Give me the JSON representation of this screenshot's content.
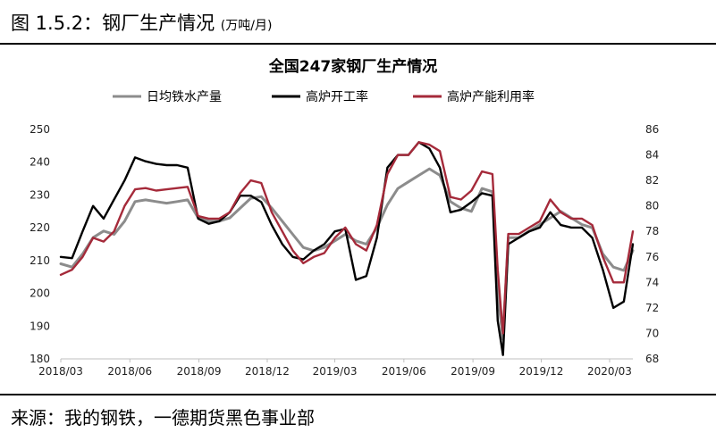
{
  "figure": {
    "label": "图 1.5.2：钢厂生产情况",
    "unit": "(万吨/月)",
    "source": "来源：我的钢铁，一德期货黑色事业部"
  },
  "chart_data": {
    "type": "line",
    "title": "全国247家钢厂生产情况",
    "legend_position": "top",
    "grid": false,
    "x_ticks": [
      "2018/03",
      "2018/06",
      "2018/09",
      "2018/12",
      "2019/03",
      "2019/06",
      "2019/09",
      "2019/12",
      "2020/03"
    ],
    "x_range": [
      "2018-03-01",
      "2020-04-01"
    ],
    "y_left": {
      "range": [
        180,
        250
      ],
      "ticks": [
        "180",
        "190",
        "200",
        "210",
        "220",
        "230",
        "240",
        "250"
      ]
    },
    "y_right": {
      "range": [
        68,
        86
      ],
      "ticks": [
        "68",
        "70",
        "72",
        "74",
        "76",
        "78",
        "80",
        "82",
        "84",
        "86"
      ]
    },
    "series": [
      {
        "name": "日均铁水产量",
        "axis": "left",
        "color": "#8c8c8c",
        "points": [
          [
            "2018-03-01",
            209
          ],
          [
            "2018-03-16",
            208
          ],
          [
            "2018-03-30",
            212
          ],
          [
            "2018-04-13",
            217
          ],
          [
            "2018-04-27",
            219
          ],
          [
            "2018-05-11",
            218
          ],
          [
            "2018-05-25",
            222
          ],
          [
            "2018-06-08",
            228
          ],
          [
            "2018-06-22",
            228.5
          ],
          [
            "2018-07-06",
            228
          ],
          [
            "2018-07-20",
            227.5
          ],
          [
            "2018-08-03",
            228
          ],
          [
            "2018-08-17",
            228.5
          ],
          [
            "2018-08-31",
            223
          ],
          [
            "2018-09-14",
            222
          ],
          [
            "2018-09-28",
            222
          ],
          [
            "2018-10-12",
            223
          ],
          [
            "2018-10-26",
            226
          ],
          [
            "2018-11-09",
            229
          ],
          [
            "2018-11-23",
            229.5
          ],
          [
            "2018-12-07",
            226
          ],
          [
            "2018-12-21",
            222
          ],
          [
            "2019-01-04",
            218
          ],
          [
            "2019-01-18",
            214
          ],
          [
            "2019-02-01",
            213
          ],
          [
            "2019-02-15",
            214
          ],
          [
            "2019-03-01",
            216
          ],
          [
            "2019-03-15",
            218
          ],
          [
            "2019-03-29",
            216
          ],
          [
            "2019-04-12",
            215
          ],
          [
            "2019-04-26",
            220
          ],
          [
            "2019-05-10",
            227
          ],
          [
            "2019-05-24",
            232
          ],
          [
            "2019-06-07",
            234
          ],
          [
            "2019-06-21",
            236
          ],
          [
            "2019-07-05",
            238
          ],
          [
            "2019-07-19",
            236
          ],
          [
            "2019-08-02",
            228
          ],
          [
            "2019-08-16",
            226
          ],
          [
            "2019-08-30",
            225
          ],
          [
            "2019-09-13",
            232
          ],
          [
            "2019-09-27",
            231
          ],
          [
            "2019-10-04",
            200
          ],
          [
            "2019-10-11",
            186
          ],
          [
            "2019-10-18",
            217
          ],
          [
            "2019-11-01",
            217
          ],
          [
            "2019-11-15",
            219
          ],
          [
            "2019-11-29",
            221
          ],
          [
            "2019-12-13",
            223
          ],
          [
            "2019-12-27",
            225
          ],
          [
            "2020-01-10",
            223
          ],
          [
            "2020-01-24",
            221
          ],
          [
            "2020-02-07",
            220
          ],
          [
            "2020-02-21",
            212
          ],
          [
            "2020-03-06",
            208
          ],
          [
            "2020-03-20",
            207
          ],
          [
            "2020-04-01",
            213
          ]
        ]
      },
      {
        "name": "高炉开工率",
        "axis": "right",
        "color": "#000000",
        "points": [
          [
            "2018-03-01",
            76
          ],
          [
            "2018-03-16",
            75.9
          ],
          [
            "2018-03-30",
            78
          ],
          [
            "2018-04-13",
            80
          ],
          [
            "2018-04-27",
            79
          ],
          [
            "2018-05-11",
            80.5
          ],
          [
            "2018-05-25",
            82
          ],
          [
            "2018-06-08",
            83.8
          ],
          [
            "2018-06-22",
            83.5
          ],
          [
            "2018-07-06",
            83.3
          ],
          [
            "2018-07-20",
            83.2
          ],
          [
            "2018-08-03",
            83.2
          ],
          [
            "2018-08-17",
            83
          ],
          [
            "2018-08-31",
            79
          ],
          [
            "2018-09-14",
            78.6
          ],
          [
            "2018-09-28",
            78.8
          ],
          [
            "2018-10-12",
            79.5
          ],
          [
            "2018-10-26",
            80.8
          ],
          [
            "2018-11-09",
            80.8
          ],
          [
            "2018-11-23",
            80.3
          ],
          [
            "2018-12-07",
            78.5
          ],
          [
            "2018-12-21",
            77
          ],
          [
            "2019-01-04",
            76
          ],
          [
            "2019-01-18",
            75.8
          ],
          [
            "2019-02-01",
            76.5
          ],
          [
            "2019-02-15",
            77
          ],
          [
            "2019-03-01",
            78
          ],
          [
            "2019-03-15",
            78.2
          ],
          [
            "2019-03-29",
            74.2
          ],
          [
            "2019-04-12",
            74.5
          ],
          [
            "2019-04-26",
            77.5
          ],
          [
            "2019-05-10",
            83
          ],
          [
            "2019-05-24",
            84
          ],
          [
            "2019-06-07",
            84
          ],
          [
            "2019-06-21",
            85
          ],
          [
            "2019-07-05",
            84.5
          ],
          [
            "2019-07-19",
            83
          ],
          [
            "2019-08-02",
            79.5
          ],
          [
            "2019-08-16",
            79.7
          ],
          [
            "2019-08-30",
            80.3
          ],
          [
            "2019-09-13",
            81
          ],
          [
            "2019-09-27",
            80.8
          ],
          [
            "2019-10-04",
            71
          ],
          [
            "2019-10-11",
            68.3
          ],
          [
            "2019-10-18",
            77
          ],
          [
            "2019-11-01",
            77.5
          ],
          [
            "2019-11-15",
            78
          ],
          [
            "2019-11-29",
            78.3
          ],
          [
            "2019-12-13",
            79.5
          ],
          [
            "2019-12-27",
            78.5
          ],
          [
            "2020-01-10",
            78.3
          ],
          [
            "2020-01-24",
            78.3
          ],
          [
            "2020-02-07",
            77.5
          ],
          [
            "2020-02-21",
            75
          ],
          [
            "2020-03-06",
            72
          ],
          [
            "2020-03-20",
            72.5
          ],
          [
            "2020-04-01",
            77
          ]
        ]
      },
      {
        "name": "高炉产能利用率",
        "axis": "right",
        "color": "#a52a3a",
        "points": [
          [
            "2018-03-01",
            74.6
          ],
          [
            "2018-03-16",
            75
          ],
          [
            "2018-03-30",
            76
          ],
          [
            "2018-04-13",
            77.5
          ],
          [
            "2018-04-27",
            77.2
          ],
          [
            "2018-05-11",
            78
          ],
          [
            "2018-05-25",
            80
          ],
          [
            "2018-06-08",
            81.3
          ],
          [
            "2018-06-22",
            81.4
          ],
          [
            "2018-07-06",
            81.2
          ],
          [
            "2018-07-20",
            81.3
          ],
          [
            "2018-08-03",
            81.4
          ],
          [
            "2018-08-17",
            81.5
          ],
          [
            "2018-08-31",
            79.2
          ],
          [
            "2018-09-14",
            79
          ],
          [
            "2018-09-28",
            79
          ],
          [
            "2018-10-12",
            79.5
          ],
          [
            "2018-10-26",
            81
          ],
          [
            "2018-11-09",
            82
          ],
          [
            "2018-11-23",
            81.8
          ],
          [
            "2018-12-07",
            79.5
          ],
          [
            "2018-12-21",
            78
          ],
          [
            "2019-01-04",
            76.5
          ],
          [
            "2019-01-18",
            75.5
          ],
          [
            "2019-02-01",
            76
          ],
          [
            "2019-02-15",
            76.3
          ],
          [
            "2019-03-01",
            77.5
          ],
          [
            "2019-03-15",
            78.3
          ],
          [
            "2019-03-29",
            77
          ],
          [
            "2019-04-12",
            76.5
          ],
          [
            "2019-04-26",
            78.5
          ],
          [
            "2019-05-10",
            82.5
          ],
          [
            "2019-05-24",
            84
          ],
          [
            "2019-06-07",
            84
          ],
          [
            "2019-06-21",
            85
          ],
          [
            "2019-07-05",
            84.8
          ],
          [
            "2019-07-19",
            84.3
          ],
          [
            "2019-08-02",
            80.7
          ],
          [
            "2019-08-16",
            80.5
          ],
          [
            "2019-08-30",
            81.2
          ],
          [
            "2019-09-13",
            82.7
          ],
          [
            "2019-09-27",
            82.5
          ],
          [
            "2019-10-04",
            75
          ],
          [
            "2019-10-11",
            70
          ],
          [
            "2019-10-18",
            77.8
          ],
          [
            "2019-11-01",
            77.8
          ],
          [
            "2019-11-15",
            78.3
          ],
          [
            "2019-11-29",
            78.8
          ],
          [
            "2019-12-13",
            80.5
          ],
          [
            "2019-12-27",
            79.5
          ],
          [
            "2020-01-10",
            79
          ],
          [
            "2020-01-24",
            79
          ],
          [
            "2020-02-07",
            78.5
          ],
          [
            "2020-02-21",
            76
          ],
          [
            "2020-03-06",
            74
          ],
          [
            "2020-03-20",
            74
          ],
          [
            "2020-04-01",
            78
          ]
        ]
      }
    ]
  }
}
